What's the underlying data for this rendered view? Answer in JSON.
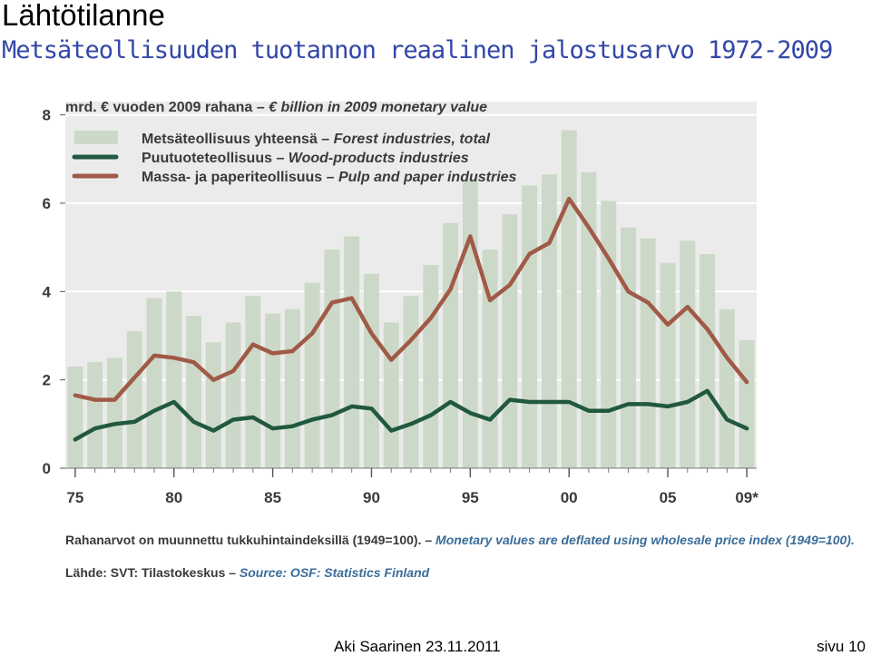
{
  "slide": {
    "title": "Lähtötilanne",
    "subtitle": "Metsäteollisuuden tuotannon reaalinen jalostusarvo 1972-2009",
    "footer_author": "Aki Saarinen 23.11.2011",
    "footer_page": "sivu 10"
  },
  "colors": {
    "title": "#000000",
    "subtitle": "#3347a8",
    "bar": "#ccd9c8",
    "wood_line": "#21593f",
    "pulp_line": "#a05a47",
    "chart_text": "#3a3a3a",
    "note_accent": "#3a6d9a",
    "grid": "#ffffff",
    "plot_background": "#ebebeb"
  },
  "chart_data": {
    "type": "bar",
    "unit_label": {
      "fi": "mrd. € vuoden 2009 rahana – ",
      "en": "€ billion in 2009 monetary value"
    },
    "x": [
      1975,
      1976,
      1977,
      1978,
      1979,
      1980,
      1981,
      1982,
      1983,
      1984,
      1985,
      1986,
      1987,
      1988,
      1989,
      1990,
      1991,
      1992,
      1993,
      1994,
      1995,
      1996,
      1997,
      1998,
      1999,
      2000,
      2001,
      2002,
      2003,
      2004,
      2005,
      2006,
      2007,
      2008,
      2009
    ],
    "xticks": [
      {
        "year": 1975,
        "label": "75"
      },
      {
        "year": 1980,
        "label": "80"
      },
      {
        "year": 1985,
        "label": "85"
      },
      {
        "year": 1990,
        "label": "90"
      },
      {
        "year": 1995,
        "label": "95"
      },
      {
        "year": 2000,
        "label": "00"
      },
      {
        "year": 2005,
        "label": "05"
      },
      {
        "year": 2009,
        "label": "09*"
      }
    ],
    "yticks": [
      0,
      2,
      4,
      6,
      8
    ],
    "ylim": [
      0,
      8.3
    ],
    "grid": "horizontal",
    "legend_position": "top-left",
    "series": [
      {
        "key": "total",
        "kind": "bar",
        "legend_fi": "Metsäteollisuus yhteensä – ",
        "legend_en": "Forest industries, total",
        "values": [
          2.3,
          2.4,
          2.5,
          3.1,
          3.85,
          4.0,
          3.45,
          2.85,
          3.3,
          3.9,
          3.5,
          3.6,
          4.2,
          4.95,
          5.25,
          4.4,
          3.3,
          3.9,
          4.6,
          5.55,
          6.5,
          4.95,
          5.75,
          6.4,
          6.65,
          7.65,
          6.7,
          6.05,
          5.45,
          5.2,
          4.65,
          5.15,
          4.85,
          3.6,
          2.9
        ]
      },
      {
        "key": "wood",
        "kind": "line",
        "legend_fi": "Puutuoteteollisuus – ",
        "legend_en": "Wood-products industries",
        "values": [
          0.65,
          0.9,
          1.0,
          1.05,
          1.3,
          1.5,
          1.05,
          0.85,
          1.1,
          1.15,
          0.9,
          0.95,
          1.1,
          1.2,
          1.4,
          1.35,
          0.85,
          1.0,
          1.2,
          1.5,
          1.25,
          1.1,
          1.55,
          1.5,
          1.5,
          1.5,
          1.3,
          1.3,
          1.45,
          1.45,
          1.4,
          1.5,
          1.75,
          1.1,
          0.9
        ]
      },
      {
        "key": "pulp",
        "kind": "line",
        "legend_fi": "Massa- ja paperiteollisuus – ",
        "legend_en": "Pulp and paper industries",
        "values": [
          1.65,
          1.55,
          1.55,
          2.05,
          2.55,
          2.5,
          2.4,
          2.0,
          2.2,
          2.8,
          2.6,
          2.65,
          3.05,
          3.75,
          3.85,
          3.05,
          2.45,
          2.9,
          3.4,
          4.05,
          5.25,
          3.8,
          4.15,
          4.85,
          5.1,
          6.1,
          5.45,
          4.75,
          4.0,
          3.75,
          3.25,
          3.65,
          3.15,
          2.5,
          1.95
        ]
      }
    ],
    "note": {
      "fi": "Rahanarvot on muunnettu tukkuhintaindeksillä (1949=100). – ",
      "en": "Monetary values are deflated using wholesale price index (1949=100)."
    },
    "source": {
      "fi": "Lähde: SVT: Tilastokeskus – ",
      "en": "Source: OSF: Statistics Finland"
    }
  }
}
